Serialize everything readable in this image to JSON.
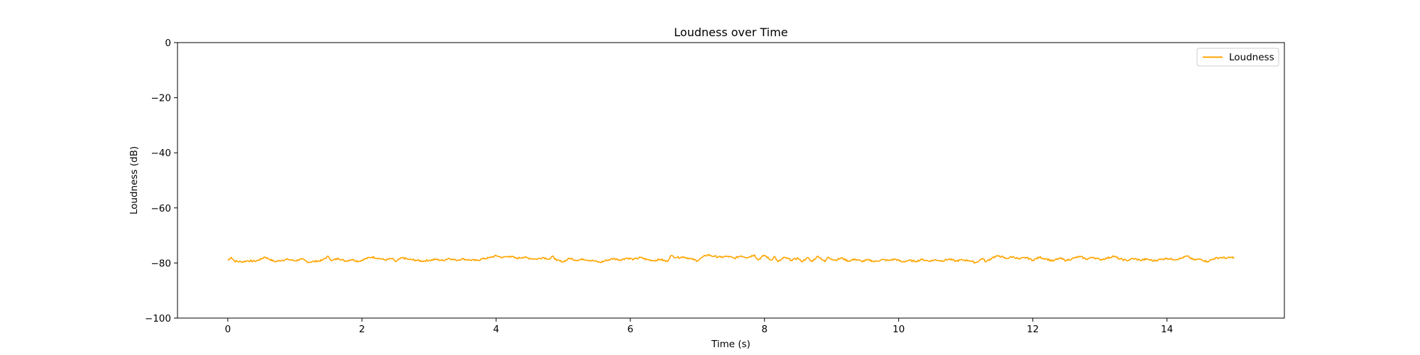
{
  "chart_data": {
    "type": "line",
    "title": "Loudness over Time",
    "xlabel": "Time (s)",
    "ylabel": "Loudness (dB)",
    "xlim": [
      -0.75,
      15.75
    ],
    "ylim": [
      -100,
      0
    ],
    "x_ticks": [
      0,
      2,
      4,
      6,
      8,
      10,
      12,
      14
    ],
    "y_ticks": [
      0,
      -20,
      -40,
      -60,
      -80,
      -100
    ],
    "y_tick_labels": [
      "0",
      "−20",
      "−40",
      "−60",
      "−80",
      "−100"
    ],
    "grid": false,
    "legend_position": "top-right",
    "series": [
      {
        "name": "Loudness",
        "color": "#ffa500",
        "x_range": [
          0,
          15
        ],
        "points": [
          [
            0.0,
            -79.1
          ],
          [
            0.05,
            -77.9
          ],
          [
            0.1,
            -79.3
          ],
          [
            0.2,
            -79.6
          ],
          [
            0.3,
            -79.2
          ],
          [
            0.4,
            -79.4
          ],
          [
            0.5,
            -78.6
          ],
          [
            0.55,
            -77.8
          ],
          [
            0.6,
            -78.4
          ],
          [
            0.7,
            -79.5
          ],
          [
            0.8,
            -79.0
          ],
          [
            0.9,
            -78.7
          ],
          [
            1.0,
            -79.2
          ],
          [
            1.1,
            -78.6
          ],
          [
            1.2,
            -79.7
          ],
          [
            1.3,
            -79.4
          ],
          [
            1.4,
            -79.1
          ],
          [
            1.5,
            -77.6
          ],
          [
            1.55,
            -79.2
          ],
          [
            1.65,
            -78.3
          ],
          [
            1.75,
            -79.3
          ],
          [
            1.85,
            -78.7
          ],
          [
            1.95,
            -79.4
          ],
          [
            2.05,
            -78.5
          ],
          [
            2.15,
            -77.8
          ],
          [
            2.25,
            -78.3
          ],
          [
            2.35,
            -78.9
          ],
          [
            2.45,
            -78.4
          ],
          [
            2.5,
            -79.5
          ],
          [
            2.6,
            -78.1
          ],
          [
            2.7,
            -78.7
          ],
          [
            2.8,
            -79.0
          ],
          [
            2.9,
            -79.3
          ],
          [
            3.0,
            -79.0
          ],
          [
            3.1,
            -78.7
          ],
          [
            3.2,
            -79.1
          ],
          [
            3.3,
            -78.3
          ],
          [
            3.4,
            -79.0
          ],
          [
            3.5,
            -78.5
          ],
          [
            3.6,
            -78.9
          ],
          [
            3.7,
            -79.1
          ],
          [
            3.8,
            -78.5
          ],
          [
            3.9,
            -78.1
          ],
          [
            4.0,
            -77.4
          ],
          [
            4.1,
            -78.0
          ],
          [
            4.2,
            -77.5
          ],
          [
            4.3,
            -78.3
          ],
          [
            4.4,
            -77.9
          ],
          [
            4.5,
            -78.3
          ],
          [
            4.6,
            -78.6
          ],
          [
            4.7,
            -78.0
          ],
          [
            4.8,
            -78.6
          ],
          [
            4.85,
            -77.5
          ],
          [
            4.9,
            -79.1
          ],
          [
            5.0,
            -79.5
          ],
          [
            5.1,
            -78.3
          ],
          [
            5.2,
            -79.0
          ],
          [
            5.3,
            -78.6
          ],
          [
            5.45,
            -79.2
          ],
          [
            5.55,
            -79.8
          ],
          [
            5.65,
            -79.0
          ],
          [
            5.75,
            -78.4
          ],
          [
            5.85,
            -78.9
          ],
          [
            5.95,
            -78.2
          ],
          [
            6.05,
            -78.7
          ],
          [
            6.15,
            -78.0
          ],
          [
            6.25,
            -78.8
          ],
          [
            6.35,
            -79.1
          ],
          [
            6.45,
            -78.7
          ],
          [
            6.55,
            -79.5
          ],
          [
            6.6,
            -77.4
          ],
          [
            6.7,
            -78.0
          ],
          [
            6.8,
            -77.8
          ],
          [
            6.9,
            -78.5
          ],
          [
            7.0,
            -79.2
          ],
          [
            7.05,
            -78.3
          ],
          [
            7.15,
            -77.0
          ],
          [
            7.25,
            -77.6
          ],
          [
            7.35,
            -77.9
          ],
          [
            7.45,
            -77.6
          ],
          [
            7.55,
            -78.3
          ],
          [
            7.65,
            -77.4
          ],
          [
            7.75,
            -78.0
          ],
          [
            7.85,
            -77.0
          ],
          [
            7.9,
            -78.9
          ],
          [
            8.0,
            -77.2
          ],
          [
            8.1,
            -79.0
          ],
          [
            8.15,
            -77.6
          ],
          [
            8.2,
            -79.6
          ],
          [
            8.3,
            -78.0
          ],
          [
            8.4,
            -79.0
          ],
          [
            8.5,
            -78.2
          ],
          [
            8.55,
            -79.5
          ],
          [
            8.65,
            -78.1
          ],
          [
            8.7,
            -79.5
          ],
          [
            8.8,
            -77.5
          ],
          [
            8.9,
            -79.5
          ],
          [
            8.95,
            -77.9
          ],
          [
            9.05,
            -79.0
          ],
          [
            9.15,
            -78.2
          ],
          [
            9.25,
            -79.3
          ],
          [
            9.35,
            -78.6
          ],
          [
            9.45,
            -79.4
          ],
          [
            9.55,
            -78.9
          ],
          [
            9.65,
            -79.5
          ],
          [
            9.75,
            -78.8
          ],
          [
            9.85,
            -79.1
          ],
          [
            9.95,
            -78.6
          ],
          [
            10.05,
            -79.6
          ],
          [
            10.15,
            -79.1
          ],
          [
            10.25,
            -79.4
          ],
          [
            10.35,
            -78.7
          ],
          [
            10.45,
            -79.3
          ],
          [
            10.55,
            -78.9
          ],
          [
            10.65,
            -79.2
          ],
          [
            10.75,
            -78.6
          ],
          [
            10.85,
            -79.3
          ],
          [
            10.95,
            -78.9
          ],
          [
            11.05,
            -79.1
          ],
          [
            11.15,
            -79.9
          ],
          [
            11.25,
            -78.3
          ],
          [
            11.3,
            -79.6
          ],
          [
            11.4,
            -78.0
          ],
          [
            11.5,
            -77.4
          ],
          [
            11.6,
            -78.4
          ],
          [
            11.7,
            -77.7
          ],
          [
            11.8,
            -78.6
          ],
          [
            11.9,
            -78.0
          ],
          [
            12.0,
            -79.0
          ],
          [
            12.1,
            -77.9
          ],
          [
            12.2,
            -78.5
          ],
          [
            12.3,
            -79.3
          ],
          [
            12.4,
            -78.3
          ],
          [
            12.5,
            -79.1
          ],
          [
            12.6,
            -78.3
          ],
          [
            12.7,
            -77.7
          ],
          [
            12.8,
            -78.6
          ],
          [
            12.9,
            -77.9
          ],
          [
            13.0,
            -78.8
          ],
          [
            13.1,
            -78.3
          ],
          [
            13.2,
            -77.5
          ],
          [
            13.3,
            -78.6
          ],
          [
            13.4,
            -79.1
          ],
          [
            13.5,
            -78.4
          ],
          [
            13.6,
            -79.0
          ],
          [
            13.7,
            -78.6
          ],
          [
            13.8,
            -79.2
          ],
          [
            13.9,
            -78.7
          ],
          [
            14.0,
            -78.3
          ],
          [
            14.1,
            -78.7
          ],
          [
            14.2,
            -78.4
          ],
          [
            14.3,
            -77.5
          ],
          [
            14.4,
            -78.9
          ],
          [
            14.5,
            -78.6
          ],
          [
            14.6,
            -79.5
          ],
          [
            14.7,
            -78.4
          ],
          [
            14.8,
            -78.0
          ],
          [
            14.9,
            -78.2
          ],
          [
            15.0,
            -77.9
          ]
        ]
      }
    ]
  }
}
